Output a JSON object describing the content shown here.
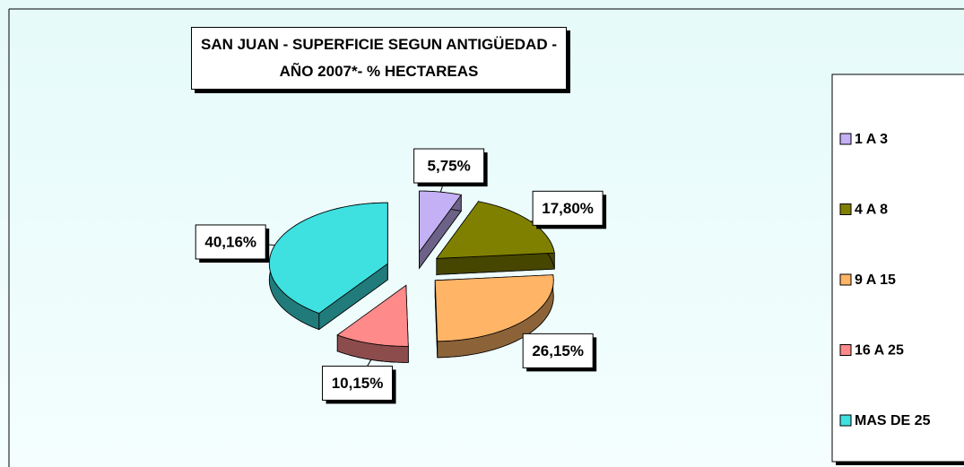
{
  "chart_data": {
    "type": "pie",
    "title": "SAN JUAN  - SUPERFICIE SEGUN ANTIGÜEDAD - AÑO 2007*- % HECTAREAS",
    "categories": [
      "1 A 3",
      "4 A 8",
      "9 A 15",
      "16 A 25",
      "MAS DE 25"
    ],
    "values": [
      5.75,
      17.8,
      26.15,
      10.15,
      40.16
    ],
    "value_labels": [
      "5,75%",
      "17,80%",
      "26,15%",
      "10,15%",
      "40,16%"
    ],
    "colors": [
      "#c4b0f4",
      "#808000",
      "#ffb466",
      "#ff8a8a",
      "#3ee0e0"
    ],
    "legend": "right"
  }
}
